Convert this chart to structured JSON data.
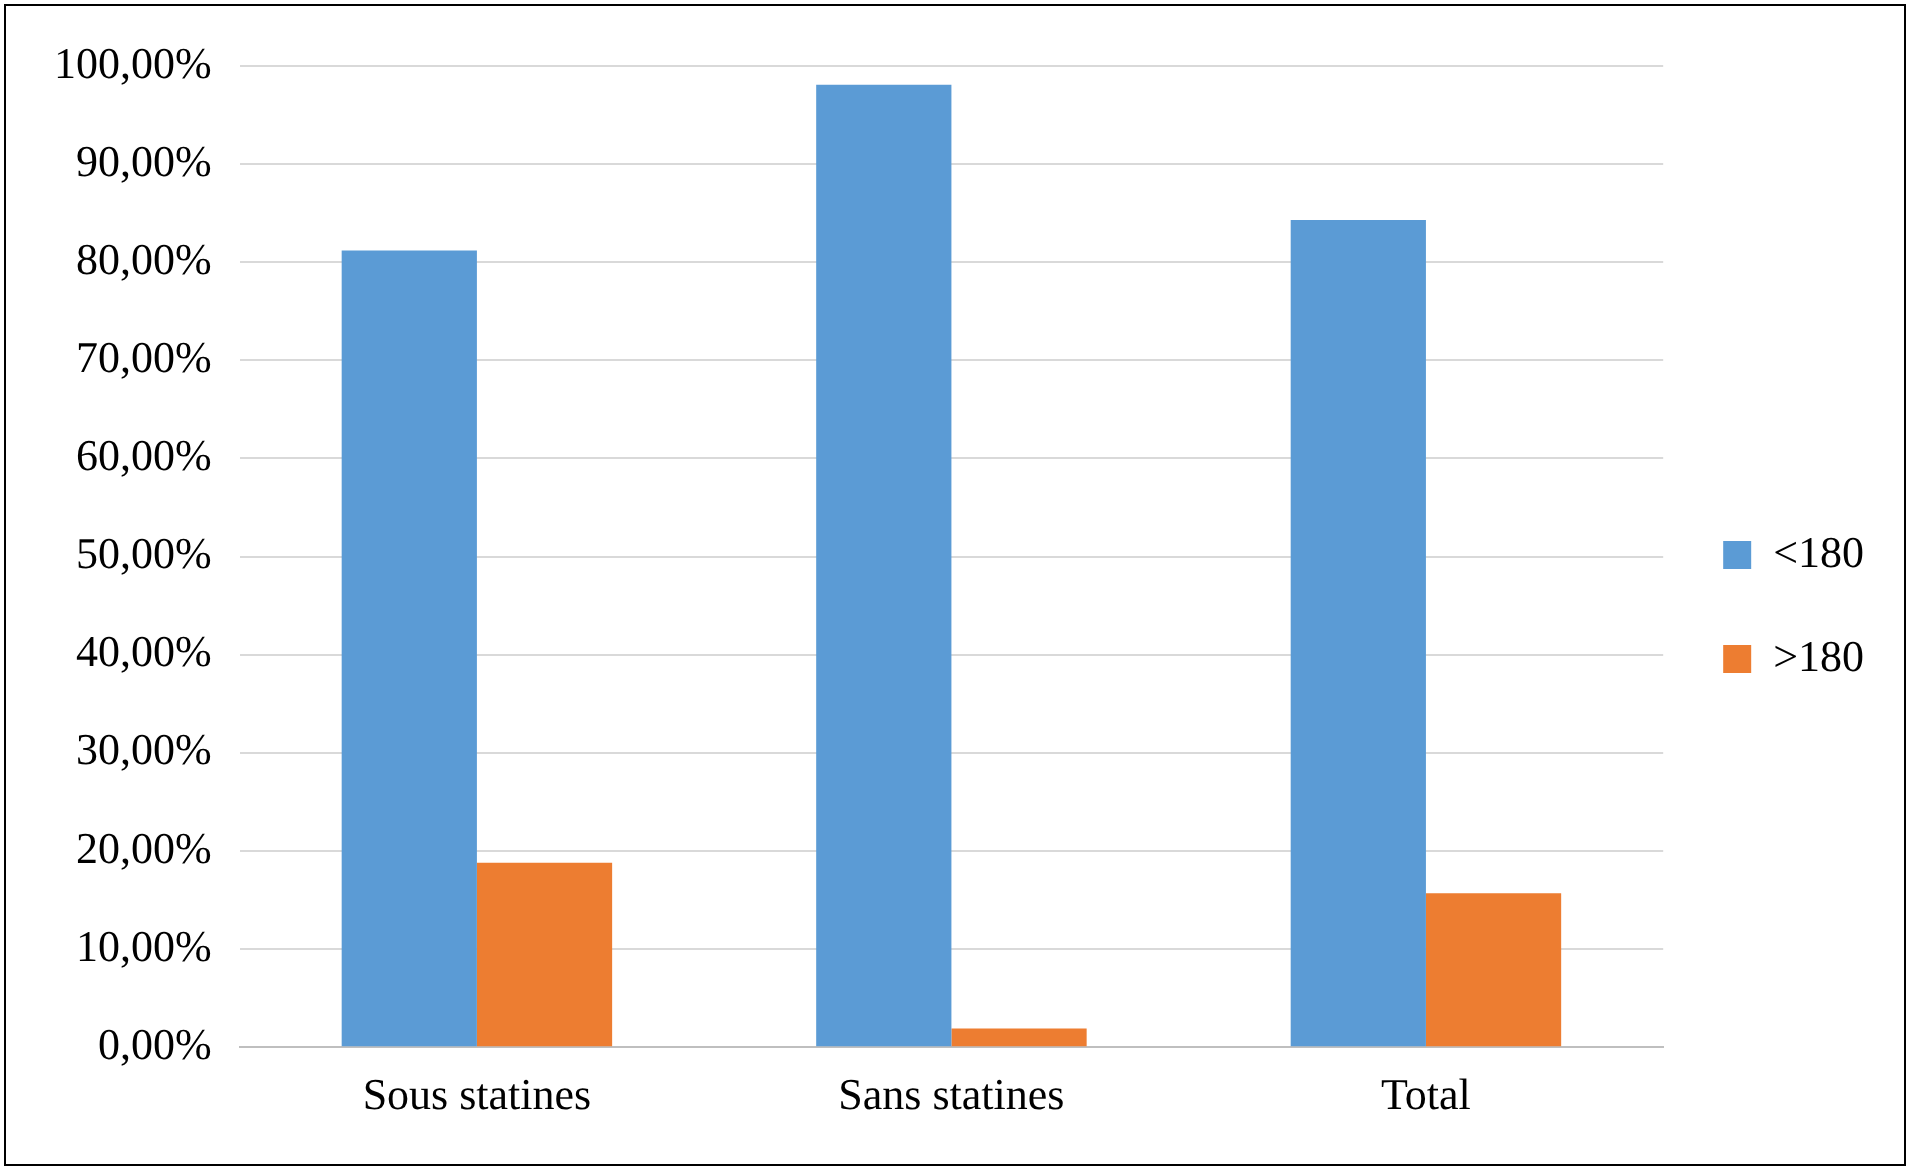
{
  "chart_data": {
    "type": "bar",
    "categories": [
      "Sous statines",
      "Sans statines",
      "Total"
    ],
    "series": [
      {
        "name": "<180",
        "color": "#5b9bd5",
        "values": [
          81.2,
          98.1,
          84.3
        ]
      },
      {
        "name": ">180",
        "color": "#ed7d31",
        "values": [
          18.8,
          1.9,
          15.7
        ]
      }
    ],
    "ylim": [
      0,
      100
    ],
    "yticks": [
      {
        "value": 0,
        "label": "0,00%"
      },
      {
        "value": 10,
        "label": "10,00%"
      },
      {
        "value": 20,
        "label": "20,00%"
      },
      {
        "value": 30,
        "label": "30,00%"
      },
      {
        "value": 40,
        "label": "40,00%"
      },
      {
        "value": 50,
        "label": "50,00%"
      },
      {
        "value": 60,
        "label": "60,00%"
      },
      {
        "value": 70,
        "label": "70,00%"
      },
      {
        "value": 80,
        "label": "80,00%"
      },
      {
        "value": 90,
        "label": "90,00%"
      },
      {
        "value": 100,
        "label": "100,00%"
      }
    ],
    "grid": "y",
    "legend": "right"
  }
}
